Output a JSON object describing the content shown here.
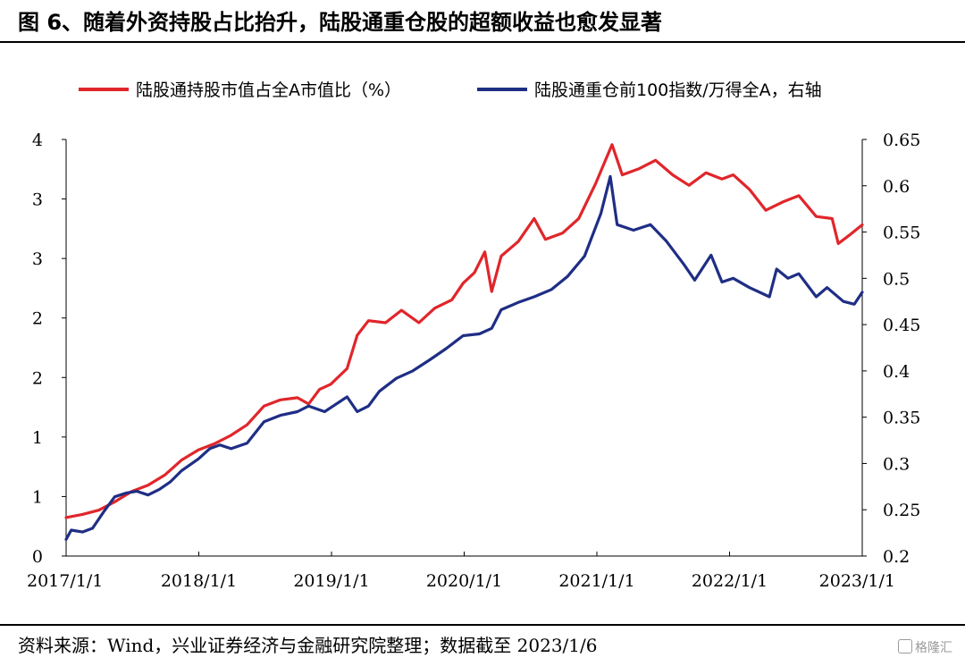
{
  "header": {
    "title": "图 6、随着外资持股占比抬升，陆股通重仓股的超额收益也愈发显著"
  },
  "footer": {
    "source": "资料来源：Wind，兴业证券经济与金融研究院整理；数据截至 2023/1/6",
    "watermark": "格隆汇"
  },
  "chart_data": {
    "type": "line",
    "title": "",
    "xlabel": "",
    "ylabel": "",
    "xlim": [
      "2017/1/1",
      "2023/1/6"
    ],
    "x_ticks": [
      "2017/1/1",
      "2018/1/1",
      "2019/1/1",
      "2020/1/1",
      "2021/1/1",
      "2022/1/1",
      "2023/1/1"
    ],
    "y_left": {
      "ylim": [
        0,
        4
      ],
      "tick_labels": [
        "0",
        "1",
        "1",
        "2",
        "2",
        "3",
        "3",
        "4"
      ]
    },
    "y_right": {
      "ylim": [
        0.2,
        0.65
      ],
      "tick_labels": [
        "0.2",
        "0.25",
        "0.3",
        "0.35",
        "0.4",
        "0.45",
        "0.5",
        "0.55",
        "0.6",
        "0.65"
      ]
    },
    "grid": false,
    "legend_position": "top",
    "series": [
      {
        "name": "陆股通持股市值占全A市值比（%）",
        "axis": "left",
        "color": "#e0262b",
        "points": [
          [
            "2017/1/1",
            0.37
          ],
          [
            "2017/2/15",
            0.4
          ],
          [
            "2017/4/1",
            0.44
          ],
          [
            "2017/5/15",
            0.52
          ],
          [
            "2017/7/1",
            0.62
          ],
          [
            "2017/8/15",
            0.68
          ],
          [
            "2017/10/1",
            0.78
          ],
          [
            "2017/11/15",
            0.92
          ],
          [
            "2018/1/1",
            1.02
          ],
          [
            "2018/2/15",
            1.08
          ],
          [
            "2018/4/1",
            1.16
          ],
          [
            "2018/5/15",
            1.26
          ],
          [
            "2018/7/1",
            1.44
          ],
          [
            "2018/8/15",
            1.5
          ],
          [
            "2018/10/1",
            1.52
          ],
          [
            "2018/11/1",
            1.46
          ],
          [
            "2018/12/1",
            1.6
          ],
          [
            "2019/1/1",
            1.65
          ],
          [
            "2019/2/15",
            1.8
          ],
          [
            "2019/3/15",
            2.12
          ],
          [
            "2019/4/15",
            2.26
          ],
          [
            "2019/6/1",
            2.24
          ],
          [
            "2019/7/15",
            2.36
          ],
          [
            "2019/9/1",
            2.24
          ],
          [
            "2019/10/15",
            2.38
          ],
          [
            "2019/12/1",
            2.46
          ],
          [
            "2020/1/1",
            2.62
          ],
          [
            "2020/2/1",
            2.72
          ],
          [
            "2020/3/1",
            2.92
          ],
          [
            "2020/3/20",
            2.54
          ],
          [
            "2020/4/15",
            2.88
          ],
          [
            "2020/6/1",
            3.02
          ],
          [
            "2020/7/15",
            3.24
          ],
          [
            "2020/8/15",
            3.04
          ],
          [
            "2020/10/1",
            3.1
          ],
          [
            "2020/11/15",
            3.24
          ],
          [
            "2021/1/1",
            3.58
          ],
          [
            "2021/2/15",
            3.95
          ],
          [
            "2021/3/15",
            3.66
          ],
          [
            "2021/5/1",
            3.72
          ],
          [
            "2021/6/15",
            3.8
          ],
          [
            "2021/8/1",
            3.66
          ],
          [
            "2021/9/15",
            3.56
          ],
          [
            "2021/11/1",
            3.68
          ],
          [
            "2021/12/15",
            3.62
          ],
          [
            "2022/1/15",
            3.66
          ],
          [
            "2022/3/1",
            3.52
          ],
          [
            "2022/4/15",
            3.32
          ],
          [
            "2022/6/1",
            3.4
          ],
          [
            "2022/7/15",
            3.46
          ],
          [
            "2022/9/1",
            3.26
          ],
          [
            "2022/10/15",
            3.24
          ],
          [
            "2022/11/1",
            3.0
          ],
          [
            "2022/12/1",
            3.08
          ],
          [
            "2023/1/6",
            3.18
          ]
        ]
      },
      {
        "name": "陆股通重仓前100指数/万得全A，右轴",
        "axis": "right",
        "color": "#1f2e85",
        "points": [
          [
            "2017/1/1",
            0.218
          ],
          [
            "2017/1/15",
            0.228
          ],
          [
            "2017/2/15",
            0.226
          ],
          [
            "2017/3/15",
            0.23
          ],
          [
            "2017/4/15",
            0.248
          ],
          [
            "2017/5/15",
            0.264
          ],
          [
            "2017/6/15",
            0.268
          ],
          [
            "2017/7/15",
            0.27
          ],
          [
            "2017/8/15",
            0.266
          ],
          [
            "2017/9/15",
            0.272
          ],
          [
            "2017/10/15",
            0.28
          ],
          [
            "2017/11/15",
            0.292
          ],
          [
            "2018/1/1",
            0.305
          ],
          [
            "2018/2/1",
            0.316
          ],
          [
            "2018/3/1",
            0.32
          ],
          [
            "2018/4/1",
            0.316
          ],
          [
            "2018/5/15",
            0.322
          ],
          [
            "2018/7/1",
            0.345
          ],
          [
            "2018/8/15",
            0.352
          ],
          [
            "2018/10/1",
            0.356
          ],
          [
            "2018/11/1",
            0.362
          ],
          [
            "2018/12/15",
            0.356
          ],
          [
            "2019/1/15",
            0.364
          ],
          [
            "2019/2/15",
            0.372
          ],
          [
            "2019/3/15",
            0.356
          ],
          [
            "2019/4/15",
            0.362
          ],
          [
            "2019/5/15",
            0.378
          ],
          [
            "2019/7/1",
            0.392
          ],
          [
            "2019/8/15",
            0.4
          ],
          [
            "2019/10/1",
            0.412
          ],
          [
            "2019/11/15",
            0.424
          ],
          [
            "2020/1/1",
            0.438
          ],
          [
            "2020/2/15",
            0.44
          ],
          [
            "2020/3/20",
            0.446
          ],
          [
            "2020/4/15",
            0.466
          ],
          [
            "2020/6/1",
            0.474
          ],
          [
            "2020/7/15",
            0.48
          ],
          [
            "2020/9/1",
            0.488
          ],
          [
            "2020/10/15",
            0.502
          ],
          [
            "2020/12/1",
            0.524
          ],
          [
            "2021/1/15",
            0.57
          ],
          [
            "2021/2/10",
            0.61
          ],
          [
            "2021/3/1",
            0.558
          ],
          [
            "2021/4/15",
            0.552
          ],
          [
            "2021/6/1",
            0.558
          ],
          [
            "2021/7/15",
            0.54
          ],
          [
            "2021/9/1",
            0.515
          ],
          [
            "2021/10/1",
            0.498
          ],
          [
            "2021/11/15",
            0.525
          ],
          [
            "2021/12/15",
            0.496
          ],
          [
            "2022/1/15",
            0.5
          ],
          [
            "2022/3/1",
            0.49
          ],
          [
            "2022/4/25",
            0.48
          ],
          [
            "2022/5/15",
            0.51
          ],
          [
            "2022/6/15",
            0.5
          ],
          [
            "2022/7/15",
            0.505
          ],
          [
            "2022/9/1",
            0.48
          ],
          [
            "2022/10/1",
            0.49
          ],
          [
            "2022/11/15",
            0.475
          ],
          [
            "2022/12/15",
            0.472
          ],
          [
            "2023/1/6",
            0.485
          ]
        ]
      }
    ]
  }
}
